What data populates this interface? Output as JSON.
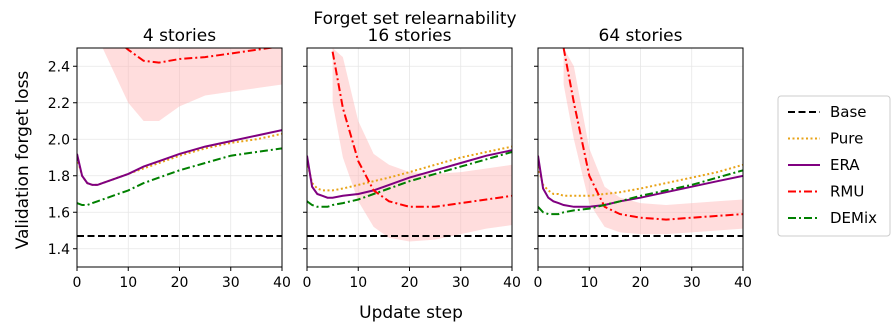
{
  "chart_data": [
    {
      "type": "line",
      "title": "4 stories",
      "xlim": [
        0,
        40
      ],
      "ylim": [
        1.3,
        2.5
      ],
      "x": [
        0,
        1,
        2,
        3,
        4,
        5,
        7,
        10,
        13,
        16,
        20,
        25,
        30,
        35,
        40
      ],
      "series": [
        {
          "name": "Base",
          "values": [
            1.47,
            1.47,
            1.47,
            1.47,
            1.47,
            1.47,
            1.47,
            1.47,
            1.47,
            1.47,
            1.47,
            1.47,
            1.47,
            1.47,
            1.47
          ]
        },
        {
          "name": "Pure",
          "values": [
            1.9,
            1.8,
            1.76,
            1.75,
            1.75,
            1.76,
            1.78,
            1.81,
            1.84,
            1.87,
            1.91,
            1.95,
            1.98,
            2.0,
            2.03
          ]
        },
        {
          "name": "ERA",
          "values": [
            1.92,
            1.8,
            1.76,
            1.75,
            1.75,
            1.76,
            1.78,
            1.81,
            1.85,
            1.88,
            1.92,
            1.96,
            1.99,
            2.02,
            2.05
          ]
        },
        {
          "name": "RMU",
          "values": [
            null,
            null,
            null,
            null,
            null,
            null,
            2.56,
            2.49,
            2.43,
            2.42,
            2.44,
            2.45,
            2.47,
            2.49,
            2.51
          ]
        },
        {
          "name": "DEMix",
          "values": [
            1.65,
            1.64,
            1.64,
            1.65,
            1.66,
            1.67,
            1.69,
            1.72,
            1.76,
            1.79,
            1.83,
            1.87,
            1.91,
            1.93,
            1.95
          ]
        }
      ],
      "rmu_band": {
        "lower": [
          null,
          null,
          null,
          null,
          null,
          null,
          null,
          2.2,
          2.1,
          2.1,
          2.18,
          2.24,
          2.26,
          2.28,
          2.3
        ],
        "upper": [
          null,
          null,
          null,
          null,
          null,
          2.5,
          2.5,
          2.5,
          2.5,
          2.5,
          2.5,
          2.5,
          2.5,
          2.5,
          2.5
        ]
      }
    },
    {
      "type": "line",
      "title": "16 stories",
      "xlim": [
        0,
        40
      ],
      "ylim": [
        1.3,
        2.5
      ],
      "x": [
        0,
        1,
        2,
        3,
        4,
        5,
        7,
        10,
        13,
        16,
        20,
        25,
        30,
        35,
        40
      ],
      "series": [
        {
          "name": "Base",
          "values": [
            1.47,
            1.47,
            1.47,
            1.47,
            1.47,
            1.47,
            1.47,
            1.47,
            1.47,
            1.47,
            1.47,
            1.47,
            1.47,
            1.47,
            1.47
          ]
        },
        {
          "name": "Pure",
          "values": [
            1.88,
            1.76,
            1.73,
            1.72,
            1.72,
            1.72,
            1.73,
            1.75,
            1.77,
            1.79,
            1.82,
            1.86,
            1.9,
            1.93,
            1.96
          ]
        },
        {
          "name": "ERA",
          "values": [
            1.91,
            1.74,
            1.7,
            1.69,
            1.68,
            1.68,
            1.69,
            1.7,
            1.72,
            1.75,
            1.79,
            1.83,
            1.87,
            1.91,
            1.94
          ]
        },
        {
          "name": "RMU",
          "values": [
            null,
            null,
            null,
            null,
            null,
            2.48,
            2.17,
            1.88,
            1.72,
            1.66,
            1.63,
            1.63,
            1.65,
            1.67,
            1.69
          ]
        },
        {
          "name": "DEMix",
          "values": [
            1.66,
            1.64,
            1.63,
            1.63,
            1.63,
            1.64,
            1.65,
            1.67,
            1.7,
            1.73,
            1.77,
            1.81,
            1.85,
            1.89,
            1.93
          ]
        }
      ],
      "rmu_band": {
        "lower": [
          null,
          null,
          null,
          null,
          null,
          2.2,
          1.9,
          1.66,
          1.52,
          1.46,
          1.44,
          1.45,
          1.48,
          1.51,
          1.53
        ],
        "upper": [
          null,
          null,
          null,
          null,
          null,
          2.5,
          2.45,
          2.1,
          1.92,
          1.86,
          1.82,
          1.81,
          1.82,
          1.84,
          1.86
        ]
      }
    },
    {
      "type": "line",
      "title": "64 stories",
      "xlim": [
        0,
        40
      ],
      "ylim": [
        1.3,
        2.5
      ],
      "x": [
        0,
        1,
        2,
        3,
        4,
        5,
        7,
        10,
        13,
        16,
        20,
        25,
        30,
        35,
        40
      ],
      "series": [
        {
          "name": "Base",
          "values": [
            1.47,
            1.47,
            1.47,
            1.47,
            1.47,
            1.47,
            1.47,
            1.47,
            1.47,
            1.47,
            1.47,
            1.47,
            1.47,
            1.47,
            1.47
          ]
        },
        {
          "name": "Pure",
          "values": [
            1.85,
            1.75,
            1.72,
            1.7,
            1.7,
            1.69,
            1.69,
            1.69,
            1.7,
            1.71,
            1.73,
            1.76,
            1.79,
            1.82,
            1.86
          ]
        },
        {
          "name": "ERA",
          "values": [
            1.91,
            1.73,
            1.68,
            1.66,
            1.65,
            1.64,
            1.63,
            1.63,
            1.64,
            1.66,
            1.68,
            1.71,
            1.74,
            1.77,
            1.8
          ]
        },
        {
          "name": "RMU",
          "values": [
            null,
            null,
            null,
            null,
            null,
            2.5,
            2.2,
            1.8,
            1.63,
            1.59,
            1.57,
            1.56,
            1.57,
            1.58,
            1.59
          ]
        },
        {
          "name": "DEMix",
          "values": [
            1.63,
            1.6,
            1.59,
            1.59,
            1.59,
            1.6,
            1.61,
            1.62,
            1.64,
            1.66,
            1.69,
            1.72,
            1.75,
            1.79,
            1.83
          ]
        }
      ],
      "rmu_band": {
        "lower": [
          null,
          null,
          null,
          null,
          null,
          2.3,
          2.0,
          1.65,
          1.52,
          1.49,
          1.48,
          1.48,
          1.49,
          1.5,
          1.51
        ],
        "upper": [
          null,
          null,
          null,
          null,
          null,
          2.5,
          2.4,
          1.95,
          1.74,
          1.68,
          1.65,
          1.64,
          1.65,
          1.66,
          1.67
        ]
      }
    }
  ],
  "figure": {
    "suptitle": "Forget set relearnability",
    "xlabel": "Update step",
    "ylabel": "Validation forget loss",
    "xticks": [
      0,
      10,
      20,
      30,
      40
    ],
    "xtick_labels": [
      "0",
      "10",
      "20",
      "30",
      "40"
    ],
    "yticks": [
      1.4,
      1.6,
      1.8,
      2.0,
      2.2,
      2.4
    ],
    "ytick_labels": [
      "1.4",
      "1.6",
      "1.8",
      "2.0",
      "2.2",
      "2.4"
    ],
    "grid": true,
    "legend_placement": "right",
    "legend": [
      {
        "label": "Base",
        "color": "#000000",
        "dash": "dashed"
      },
      {
        "label": "Pure",
        "color": "#e8a317",
        "dash": "dotted"
      },
      {
        "label": "ERA",
        "color": "#800080",
        "dash": "solid"
      },
      {
        "label": "RMU",
        "color": "#ff0000",
        "dash": "dashdot"
      },
      {
        "label": "DEMix",
        "color": "#008000",
        "dash": "dashdot"
      }
    ]
  }
}
